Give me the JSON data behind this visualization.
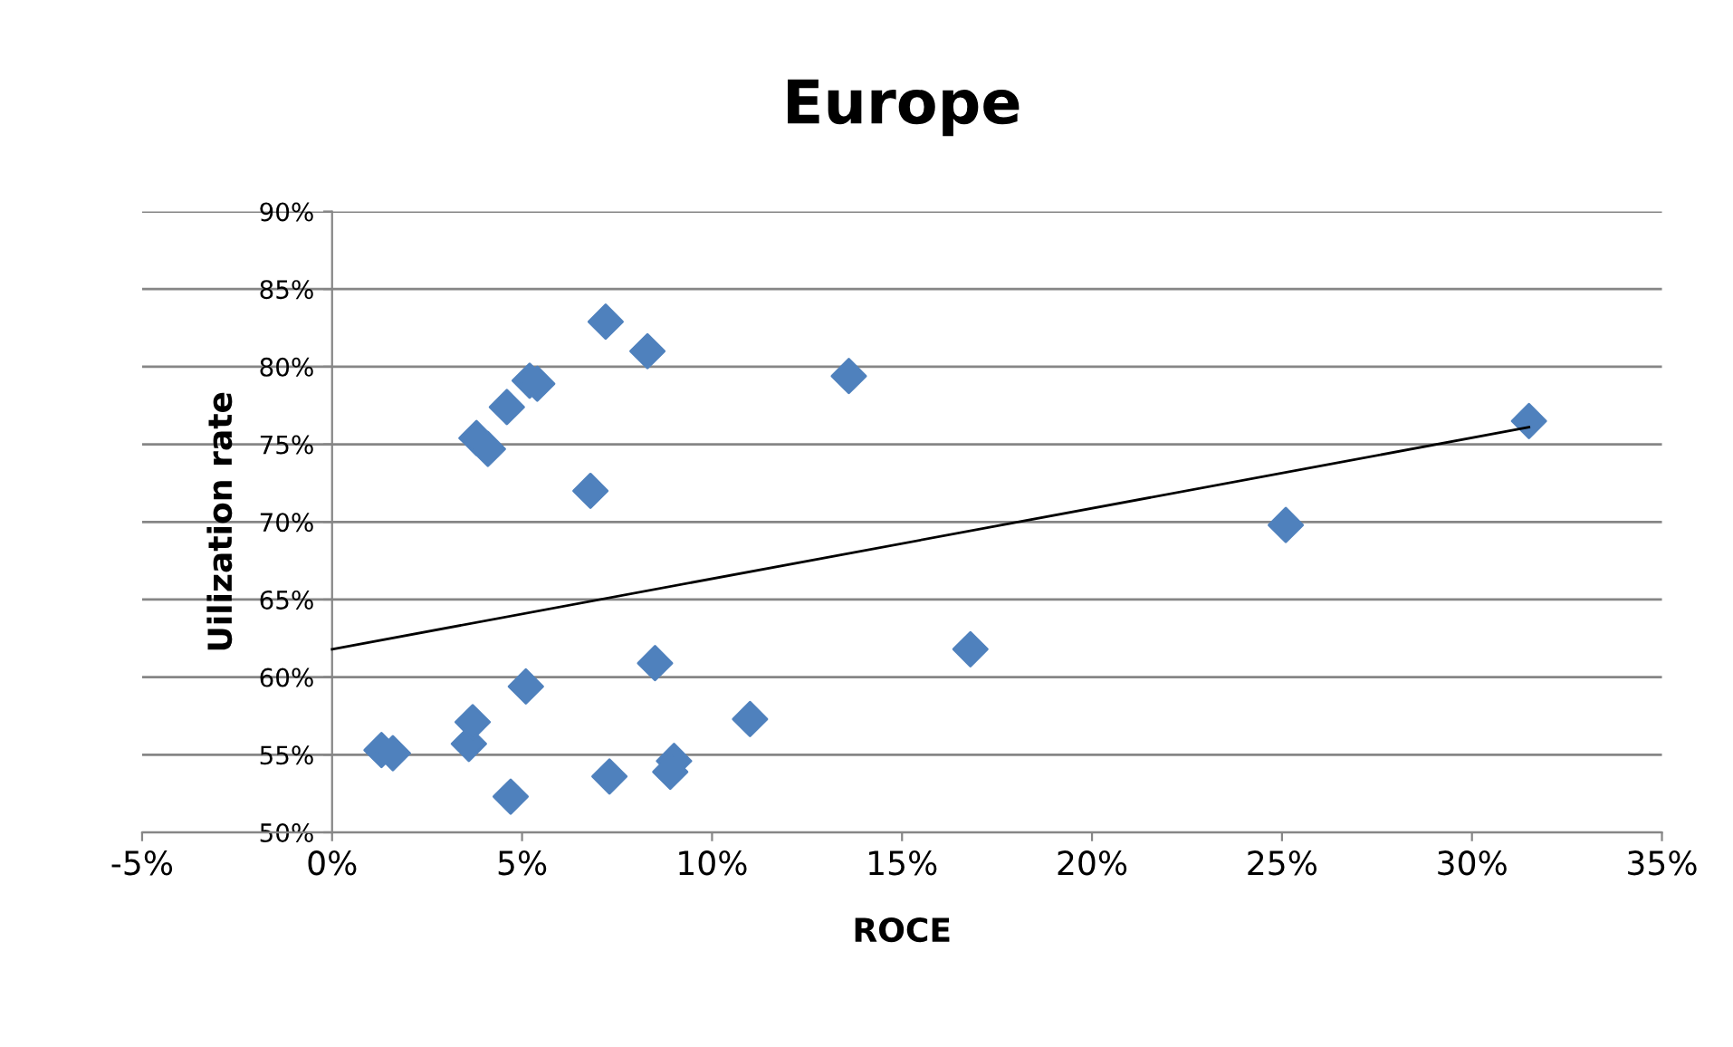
{
  "chart_data": {
    "type": "scatter",
    "title": "Europe",
    "xlabel": "ROCE",
    "ylabel": "Uilization rate",
    "series": [
      {
        "color": "#4f81bd",
        "marker": "diamond",
        "x": [
          1.3,
          1.6,
          3.6,
          3.7,
          4.7,
          5.1,
          3.8,
          4.1,
          4.6,
          5.2,
          5.4,
          6.8,
          7.2,
          8.3,
          7.3,
          8.5,
          9.0,
          8.9,
          11.0,
          13.6,
          16.8,
          25.1,
          31.5
        ],
        "values": [
          55.3,
          55.1,
          55.7,
          57.1,
          52.3,
          59.4,
          75.4,
          74.7,
          77.4,
          79.1,
          78.9,
          72.0,
          82.9,
          81.0,
          53.6,
          60.9,
          54.6,
          53.9,
          57.3,
          79.4,
          61.8,
          69.8,
          76.5
        ]
      },
      {
        "type": "line",
        "color": "#000000",
        "marker": "none",
        "line_style": "solid",
        "x": [
          0,
          31.5
        ],
        "values": [
          61.8,
          76.1
        ]
      }
    ],
    "xlim": [
      -5,
      35
    ],
    "ylim": [
      50,
      90
    ],
    "xticks": [
      {
        "value": -5,
        "label": "-5%"
      },
      {
        "value": 0,
        "label": "0%"
      },
      {
        "value": 5,
        "label": "5%"
      },
      {
        "value": 10,
        "label": "10%"
      },
      {
        "value": 15,
        "label": "15%"
      },
      {
        "value": 20,
        "label": "20%"
      },
      {
        "value": 25,
        "label": "25%"
      },
      {
        "value": 30,
        "label": "30%"
      },
      {
        "value": 35,
        "label": "35%"
      }
    ],
    "yticks": [
      {
        "value": 50,
        "label": "50%"
      },
      {
        "value": 55,
        "label": "55%"
      },
      {
        "value": 60,
        "label": "60%"
      },
      {
        "value": 65,
        "label": "65%"
      },
      {
        "value": 70,
        "label": "70%"
      },
      {
        "value": 75,
        "label": "75%"
      },
      {
        "value": 80,
        "label": "80%"
      },
      {
        "value": 85,
        "label": "85%"
      },
      {
        "value": 90,
        "label": "90%"
      }
    ],
    "grid": "y"
  }
}
